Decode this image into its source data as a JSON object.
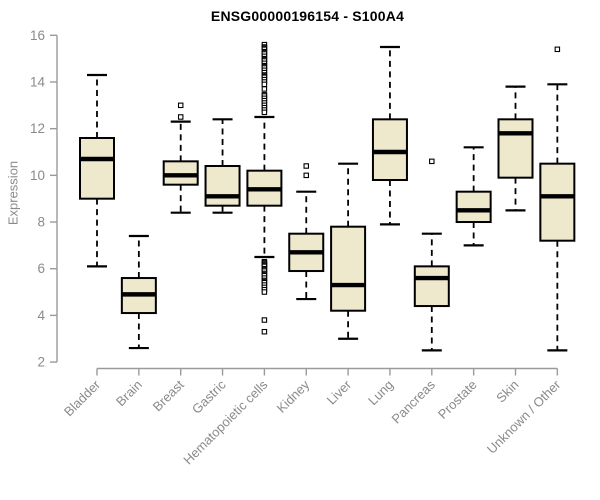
{
  "chart_data": {
    "type": "boxplot",
    "title": "ENSG00000196154 - S100A4",
    "ylabel": "Expression",
    "xlabel": "",
    "ylim": [
      2,
      16
    ],
    "yticks": [
      2,
      4,
      6,
      8,
      10,
      12,
      14,
      16
    ],
    "grid": false,
    "legend": false,
    "categories": [
      "Bladder",
      "Brain",
      "Breast",
      "Gastric",
      "Hematopoietic cells",
      "Kidney",
      "Liver",
      "Lung",
      "Pancreas",
      "Prostate",
      "Skin",
      "Unknown / Other"
    ],
    "boxes": [
      {
        "category": "Bladder",
        "whisker_low": 6.1,
        "q1": 9.0,
        "median": 10.7,
        "q3": 11.6,
        "whisker_high": 14.3,
        "outliers": []
      },
      {
        "category": "Brain",
        "whisker_low": 2.6,
        "q1": 4.1,
        "median": 4.9,
        "q3": 5.6,
        "whisker_high": 7.4,
        "outliers": []
      },
      {
        "category": "Breast",
        "whisker_low": 8.4,
        "q1": 9.6,
        "median": 10.0,
        "q3": 10.6,
        "whisker_high": 12.3,
        "outliers": [
          13.0,
          12.5
        ]
      },
      {
        "category": "Gastric",
        "whisker_low": 8.4,
        "q1": 8.7,
        "median": 9.1,
        "q3": 10.4,
        "whisker_high": 12.4,
        "outliers": []
      },
      {
        "category": "Hematopoietic cells",
        "whisker_low": 6.5,
        "q1": 8.7,
        "median": 9.4,
        "q3": 10.2,
        "whisker_high": 12.5,
        "outliers": [
          15.6,
          15.5,
          15.45,
          15.4,
          15.3,
          15.25,
          15.2,
          15.1,
          15.0,
          14.95,
          14.9,
          14.8,
          14.7,
          14.65,
          14.6,
          14.5,
          14.4,
          14.3,
          14.25,
          14.2,
          14.1,
          14.0,
          13.9,
          13.7,
          13.45,
          13.4,
          13.3,
          13.2,
          13.1,
          13.0,
          12.9,
          12.8,
          12.7,
          6.3,
          6.25,
          6.2,
          6.15,
          6.1,
          6.0,
          5.95,
          5.9,
          5.8,
          5.75,
          5.7,
          5.6,
          5.5,
          5.45,
          5.4,
          5.3,
          5.2,
          5.1,
          5.0,
          3.8,
          3.3
        ]
      },
      {
        "category": "Kidney",
        "whisker_low": 4.7,
        "q1": 5.9,
        "median": 6.7,
        "q3": 7.5,
        "whisker_high": 9.3,
        "outliers": [
          10.4,
          10.0
        ]
      },
      {
        "category": "Liver",
        "whisker_low": 3.0,
        "q1": 4.2,
        "median": 5.3,
        "q3": 7.8,
        "whisker_high": 10.5,
        "outliers": []
      },
      {
        "category": "Lung",
        "whisker_low": 7.9,
        "q1": 9.8,
        "median": 11.0,
        "q3": 12.4,
        "whisker_high": 15.5,
        "outliers": []
      },
      {
        "category": "Pancreas",
        "whisker_low": 2.5,
        "q1": 4.4,
        "median": 5.6,
        "q3": 6.1,
        "whisker_high": 7.5,
        "outliers": [
          10.6
        ]
      },
      {
        "category": "Prostate",
        "whisker_low": 7.0,
        "q1": 8.0,
        "median": 8.5,
        "q3": 9.3,
        "whisker_high": 11.2,
        "outliers": []
      },
      {
        "category": "Skin",
        "whisker_low": 8.5,
        "q1": 9.9,
        "median": 11.8,
        "q3": 12.4,
        "whisker_high": 13.8,
        "outliers": []
      },
      {
        "category": "Unknown / Other",
        "whisker_low": 2.5,
        "q1": 7.2,
        "median": 9.1,
        "q3": 10.5,
        "whisker_high": 13.9,
        "outliers": [
          15.4
        ]
      }
    ],
    "colors": {
      "box_fill": "#EEE8CD",
      "box_border": "#000000",
      "median": "#000000",
      "whisker": "#000000",
      "outlier": "#000000",
      "axis_line": "#9a9a9a",
      "tick_label": "#8a8a8a",
      "title": "#000000",
      "background": "#ffffff"
    }
  }
}
